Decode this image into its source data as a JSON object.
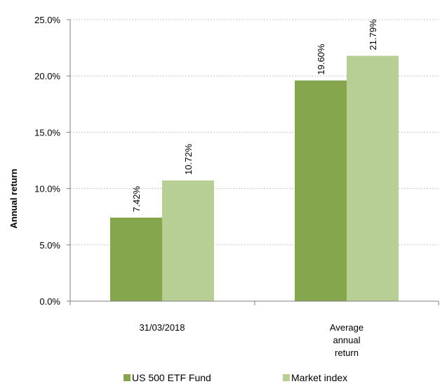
{
  "chart_data": {
    "type": "bar",
    "title": "",
    "xlabel": "",
    "ylabel": "Annual return",
    "ylim": [
      0,
      25
    ],
    "yticks": [
      "0.0%",
      "5.0%",
      "10.0%",
      "15.0%",
      "20.0%",
      "25.0%"
    ],
    "ytick_values": [
      0,
      5,
      10,
      15,
      20,
      25
    ],
    "categories": [
      "31/03/2018",
      "Average annual return"
    ],
    "category_lines": [
      [
        "31/03/2018"
      ],
      [
        "Average",
        "annual",
        "return"
      ]
    ],
    "series": [
      {
        "name": "US 500 ETF Fund",
        "color": "#86a64d",
        "values": [
          7.42,
          19.6
        ],
        "labels": [
          "7.42%",
          "19.60%"
        ]
      },
      {
        "name": "Market index",
        "color": "#b7cf95",
        "values": [
          10.72,
          21.79
        ],
        "labels": [
          "10.72%",
          "21.79%"
        ]
      }
    ],
    "grid": true,
    "legend_position": "bottom"
  }
}
